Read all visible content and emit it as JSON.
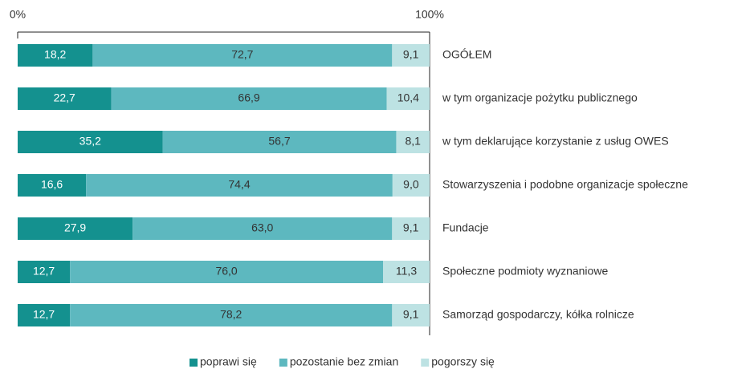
{
  "chart_data": {
    "type": "stacked-bar-horizontal",
    "categories": [
      "OGÓŁEM",
      "w tym organizacje pożytku publicznego",
      "w tym deklarujące korzystanie z usług OWES",
      "Stowarzyszenia i podobne organizacje społeczne",
      "Fundacje",
      "Społeczne podmioty wyznaniowe",
      "Samorząd gospodarczy, kółka rolnicze"
    ],
    "series": [
      {
        "name": "poprawi się",
        "color": "#14918f",
        "values": [
          18.2,
          22.7,
          35.2,
          16.6,
          27.9,
          12.7,
          12.7
        ],
        "value_labels": [
          "18,2",
          "22,7",
          "35,2",
          "16,6",
          "27,9",
          "12,7",
          "12,7"
        ]
      },
      {
        "name": "pozostanie bez zmian",
        "color": "#5db8bf",
        "values": [
          72.7,
          66.9,
          56.7,
          74.4,
          63.0,
          76.0,
          78.2
        ],
        "value_labels": [
          "72,7",
          "66,9",
          "56,7",
          "74,4",
          "63,0",
          "76,0",
          "78,2"
        ]
      },
      {
        "name": "pogorszy się",
        "color": "#bde2e3",
        "values": [
          9.1,
          10.4,
          8.1,
          9.0,
          9.1,
          11.3,
          9.1
        ],
        "value_labels": [
          "9,1",
          "10,4",
          "8,1",
          "9,0",
          "9,1",
          "11,3",
          "9,1"
        ]
      }
    ],
    "xlim": [
      0,
      100
    ],
    "xticks": [
      {
        "value": 0,
        "label": "0%"
      },
      {
        "value": 100,
        "label": "100%"
      }
    ],
    "legend": "bottom"
  }
}
